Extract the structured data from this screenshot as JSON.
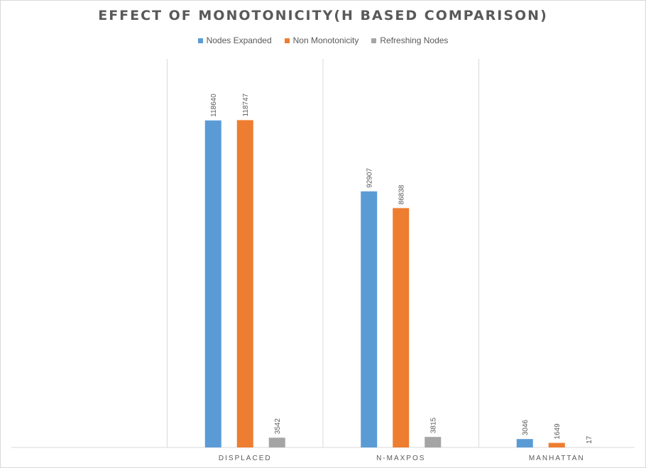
{
  "chart_data": {
    "type": "bar",
    "title": "EFFECT OF MONOTONICITY(H BASED COMPARISON)",
    "xlabel": "",
    "ylabel": "",
    "categories": [
      "",
      "DISPLACED",
      "N-MAXPOS",
      "MANHATTAN"
    ],
    "series": [
      {
        "name": "Nodes Expanded",
        "color": "#5b9bd5",
        "values": [
          null,
          118640,
          92907,
          3046
        ]
      },
      {
        "name": "Non Monotonicity",
        "color": "#ed7d31",
        "values": [
          null,
          118747,
          86838,
          1649
        ]
      },
      {
        "name": "Refreshing Nodes",
        "color": "#a5a5a5",
        "values": [
          null,
          3542,
          3815,
          17
        ]
      }
    ],
    "ylim": [
      0,
      130000
    ],
    "grid": "vertical-category-separators",
    "legend": "top-center",
    "data_labels": true
  }
}
